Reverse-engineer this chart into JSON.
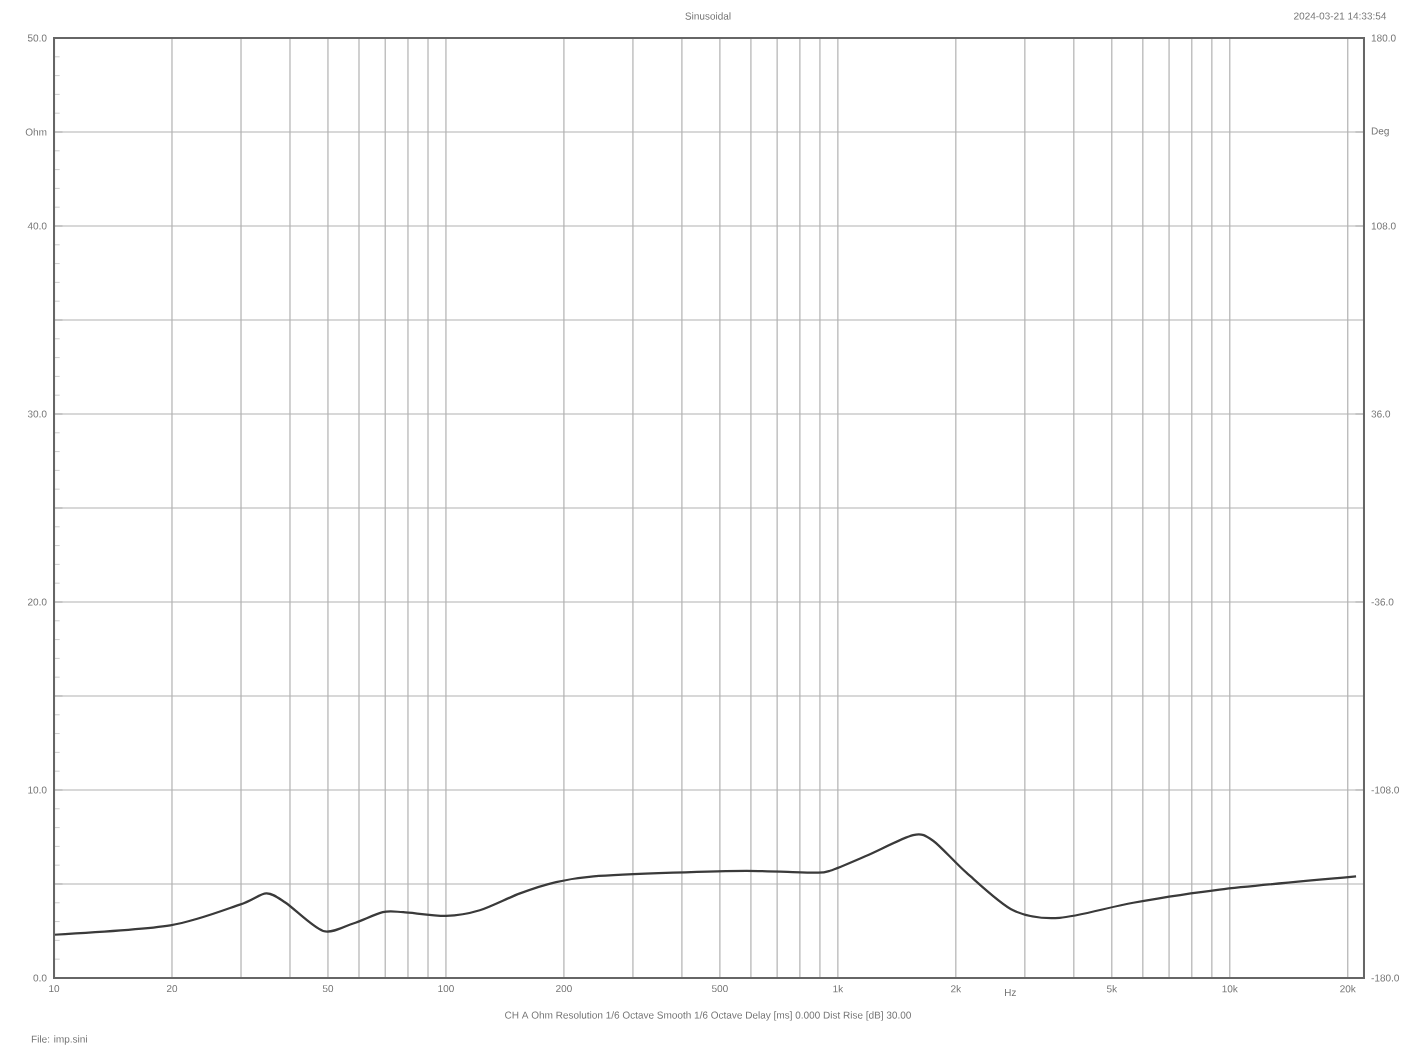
{
  "chart_data": {
    "type": "line",
    "title": "Sinusoidal",
    "xlabel": "Hz",
    "log": "x",
    "grid": true,
    "marker": "none",
    "line_style": "solid",
    "annotations": [
      "2024-03-21 14:33:54",
      "CH A   Ohm   Resolution 1/6 Octave   Smooth 1/6 Octave   Delay [ms] 0.000   Dist Rise [dB] 30.00",
      "File: imp.sini"
    ],
    "xlim": [
      10,
      22000
    ],
    "xticks": [
      10,
      20,
      {
        "value": 30,
        "label": null
      },
      {
        "value": 40,
        "label": null
      },
      50,
      {
        "value": 60,
        "label": null
      },
      {
        "value": 70,
        "label": null
      },
      {
        "value": 80,
        "label": null
      },
      {
        "value": 90,
        "label": null
      },
      100,
      200,
      {
        "value": 300,
        "label": null
      },
      {
        "value": 400,
        "label": null
      },
      500,
      {
        "value": 600,
        "label": null
      },
      {
        "value": 700,
        "label": null
      },
      {
        "value": 800,
        "label": null
      },
      {
        "value": 900,
        "label": null
      },
      {
        "value": 1000,
        "label": "1k"
      },
      {
        "value": 2000,
        "label": "2k"
      },
      {
        "value": 3000,
        "label": null
      },
      {
        "value": 4000,
        "label": null
      },
      {
        "value": 5000,
        "label": "5k"
      },
      {
        "value": 6000,
        "label": null
      },
      {
        "value": 7000,
        "label": null
      },
      {
        "value": 8000,
        "label": null
      },
      {
        "value": 9000,
        "label": null
      },
      {
        "value": 10000,
        "label": "10k"
      },
      {
        "value": 20000,
        "label": "20k"
      }
    ],
    "ylim": [
      0,
      50
    ],
    "yticks": [
      {
        "value": 0,
        "label": "0.0"
      },
      {
        "value": 5,
        "label": null
      },
      {
        "value": 10,
        "label": "10.0"
      },
      {
        "value": 15,
        "label": null
      },
      {
        "value": 20,
        "label": "20.0"
      },
      {
        "value": 25,
        "label": null
      },
      {
        "value": 30,
        "label": "30.0"
      },
      {
        "value": 35,
        "label": null
      },
      {
        "value": 40,
        "label": "40.0"
      },
      {
        "value": 45,
        "label": "Ohm"
      },
      {
        "value": 50,
        "label": "50.0"
      }
    ],
    "y2lim": [
      -180,
      180
    ],
    "y2ticks": [
      {
        "value": -180,
        "label": "-180.0"
      },
      {
        "value": -108,
        "label": "-108.0"
      },
      {
        "value": -36,
        "label": "-36.0"
      },
      {
        "value": 36,
        "label": "36.0"
      },
      {
        "value": 108,
        "label": "108.0"
      },
      {
        "value": 144,
        "label": "Deg"
      },
      {
        "value": 180,
        "label": "180.0"
      }
    ],
    "series": [
      {
        "color": "#3a3a3a",
        "x": [
          10,
          19.8,
          29.8,
          34.8,
          39,
          48.6,
          58,
          69,
          77.8,
          100,
          122,
          154.5,
          191,
          238,
          380,
          585,
          865,
          955,
          1183,
          1556,
          1750,
          2128,
          2800,
          3680,
          5670,
          9420,
          21000
        ],
        "values": [
          2.3,
          2.8,
          3.9,
          4.5,
          4.0,
          2.5,
          2.9,
          3.5,
          3.5,
          3.3,
          3.6,
          4.5,
          5.1,
          5.4,
          5.6,
          5.7,
          5.6,
          5.7,
          6.5,
          7.6,
          7.3,
          5.6,
          3.6,
          3.2,
          4.0,
          4.7,
          5.4
        ]
      }
    ]
  }
}
